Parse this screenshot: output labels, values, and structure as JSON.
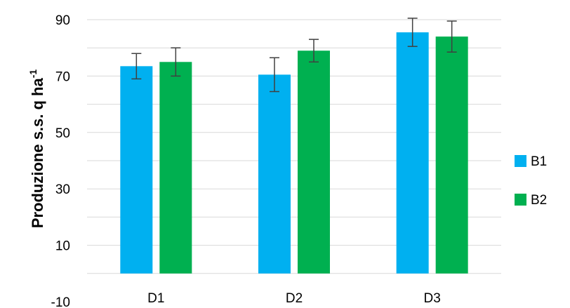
{
  "chart_data": {
    "type": "bar",
    "title": "",
    "xlabel": "",
    "ylabel_main": "Produzione s.s. q ha",
    "ylabel_superscript": "-1",
    "categories": [
      "D1",
      "D2",
      "D3"
    ],
    "ylim": [
      -10,
      90
    ],
    "yticks": [
      "90",
      "70",
      "50",
      "30",
      "10",
      "-10"
    ],
    "grid": true,
    "legend_position": "right",
    "series": [
      {
        "name": "B1",
        "color": "#00b0f0",
        "values": [
          73.5,
          70.5,
          85.5
        ],
        "error": [
          4.5,
          6.0,
          5.0
        ]
      },
      {
        "name": "B2",
        "color": "#00b050",
        "values": [
          75.0,
          79.0,
          84.0
        ],
        "error": [
          5.0,
          4.0,
          5.5
        ]
      }
    ],
    "gridline_color": "#d9d9d9",
    "errorbar_color": "#404040"
  }
}
